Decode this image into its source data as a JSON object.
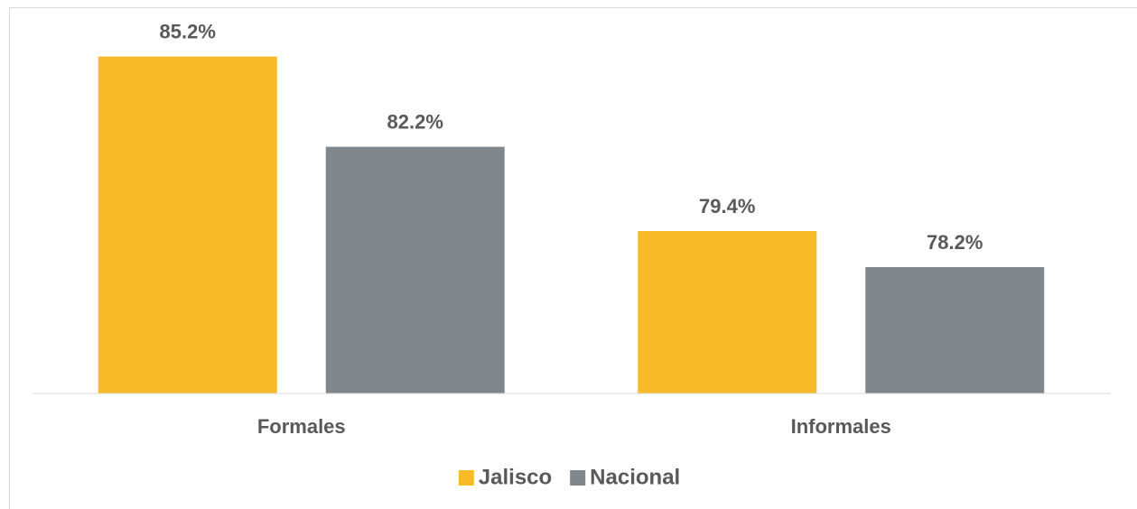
{
  "chart_data": {
    "type": "bar",
    "categories": [
      "Formales",
      "Informales"
    ],
    "series": [
      {
        "name": "Jalisco",
        "color": "#f8bb27",
        "values": [
          85.2,
          79.4
        ],
        "value_labels": [
          "85.2%",
          "79.4%"
        ]
      },
      {
        "name": "Nacional",
        "color": "#7f878c",
        "values": [
          82.2,
          78.2
        ],
        "value_labels": [
          "82.2%",
          "78.2%"
        ]
      }
    ],
    "ylim": [
      74,
      86
    ],
    "legend": "bottom"
  }
}
